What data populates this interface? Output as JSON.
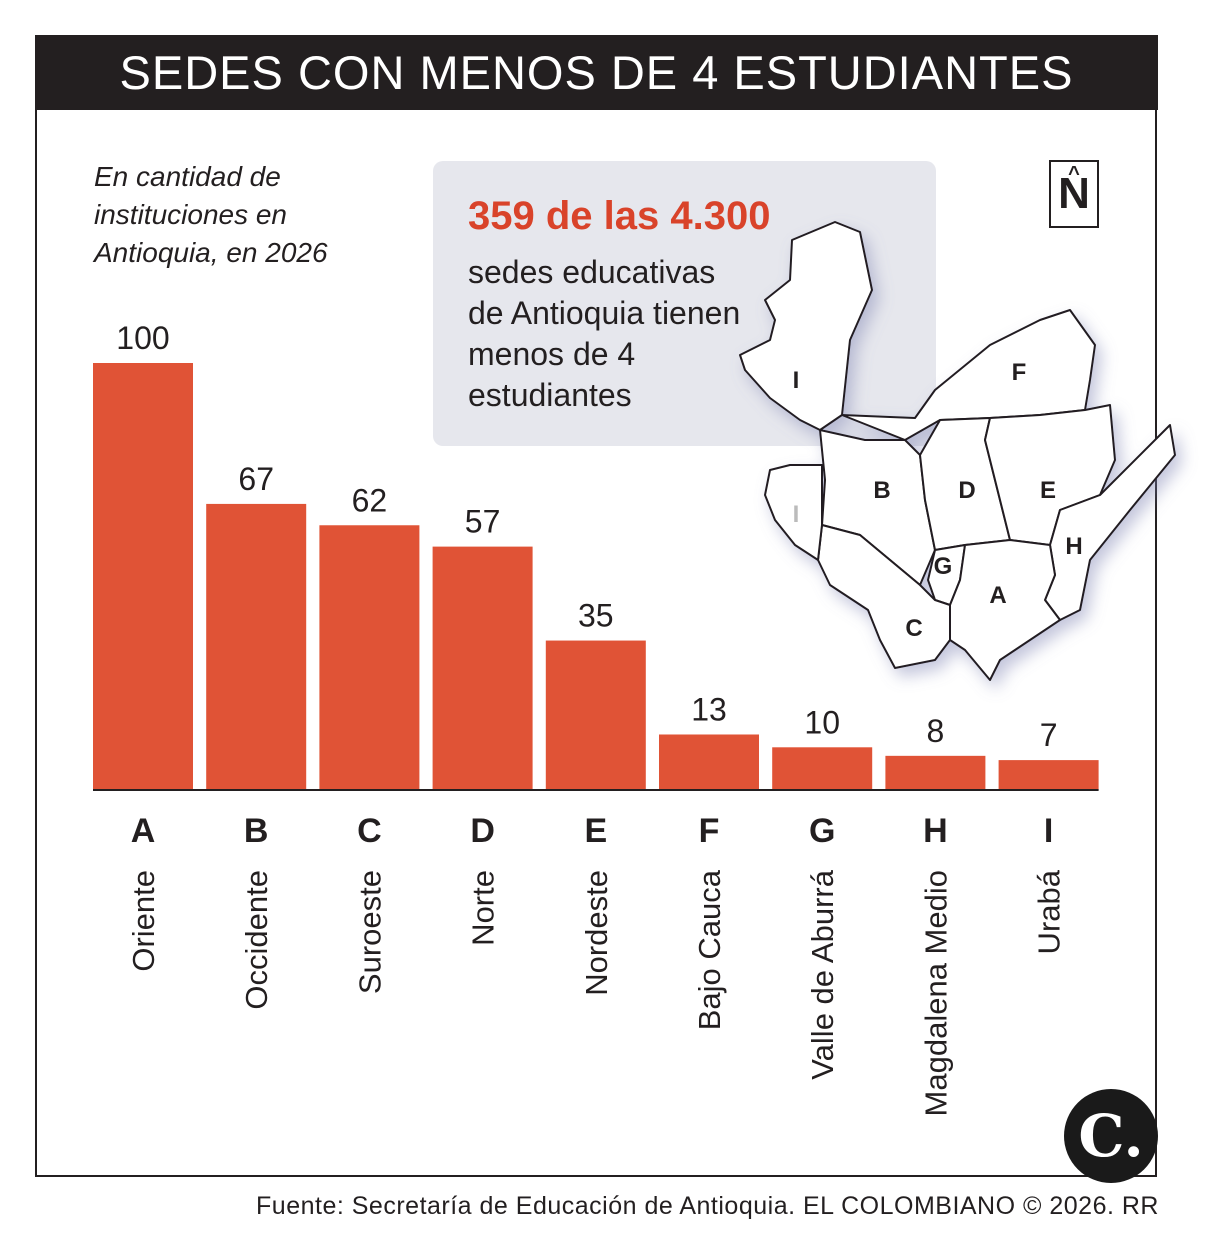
{
  "title": "SEDES CON MENOS DE 4 ESTUDIANTES",
  "subtitle": "En cantidad de instituciones en Antioquia, en 2026",
  "callout": {
    "headline": "359 de las 4.300",
    "body": "sedes educativas de Antioquia tienen menos de 4 estudiantes"
  },
  "north_label": "N",
  "logo_text": "C.",
  "source": "Fuente: Secretaría de Educación de Antioquia. EL COLOMBIANO © 2026. RR",
  "map_labels": [
    "I",
    "F",
    "B",
    "D",
    "E",
    "H",
    "G",
    "A",
    "C",
    "I"
  ],
  "colors": {
    "bar": "#e05336",
    "accent": "#d9432a",
    "dark": "#231f20",
    "callout_bg": "#e6e7ed"
  },
  "chart_data": {
    "type": "bar",
    "title": "SEDES CON MENOS DE 4 ESTUDIANTES",
    "subtitle": "En cantidad de instituciones en Antioquia, en 2026",
    "categories": [
      "A",
      "B",
      "C",
      "D",
      "E",
      "F",
      "G",
      "H",
      "I"
    ],
    "category_names": [
      "Oriente",
      "Occidente",
      "Suroeste",
      "Norte",
      "Nordeste",
      "Bajo Cauca",
      "Valle de Aburrá",
      "Magdalena Medio",
      "Urabá"
    ],
    "values": [
      100,
      67,
      62,
      57,
      35,
      13,
      10,
      8,
      7
    ],
    "ylim": [
      0,
      100
    ],
    "grid": false,
    "legend": "none"
  }
}
